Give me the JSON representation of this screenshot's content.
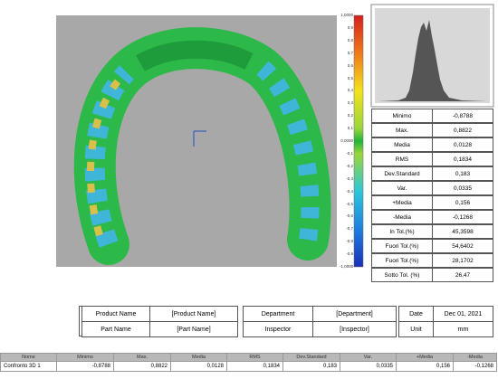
{
  "scale": {
    "labels": [
      "1,0000",
      "0,9",
      "0,8",
      "0,7",
      "0,6",
      "0,5",
      "0,4",
      "0,3",
      "0,2",
      "0,1",
      "0,0000",
      "-0,1",
      "-0,2",
      "-0,3",
      "-0,4",
      "-0,5",
      "-0,6",
      "-0,7",
      "-0,8",
      "-0,9",
      "-1,0000"
    ]
  },
  "stats": {
    "rows": [
      [
        "Minimo",
        "-0,8788"
      ],
      [
        "Max.",
        "0,8822"
      ],
      [
        "Media",
        "0,0128"
      ],
      [
        "RMS",
        "0,1834"
      ],
      [
        "Dev.Standard",
        "0,183"
      ],
      [
        "Var.",
        "0,0335"
      ],
      [
        "+Media",
        "0,156"
      ],
      [
        "-Media",
        "-0,1268"
      ],
      [
        "In Tol.(%)",
        "45,3598"
      ],
      [
        "Fuori Tol.(%)",
        "54,6402"
      ],
      [
        "Fuori Tol.(%)",
        "28,1702"
      ],
      [
        "Sotto Tol. (%)",
        "26,47"
      ]
    ]
  },
  "info": {
    "rows": [
      [
        "Product Name",
        "[Product Name]",
        "Department",
        "[Department]",
        "Date",
        "Dec 01, 2021"
      ],
      [
        "Part Name",
        "[Part Name]",
        "Inspector",
        "[Inspector]",
        "Unit",
        "mm"
      ]
    ]
  },
  "summary": {
    "header": [
      "Nome",
      "Minimo",
      "Max.",
      "Media",
      "RMS",
      "Dev.Standard",
      "Var.",
      "+Media",
      "-Media"
    ],
    "rows": [
      [
        "Confronto 3D 1",
        "-0,8788",
        "0,8822",
        "0,0128",
        "0,1834",
        "0,183",
        "0,0335",
        "0,156",
        "-0,1268"
      ]
    ]
  }
}
